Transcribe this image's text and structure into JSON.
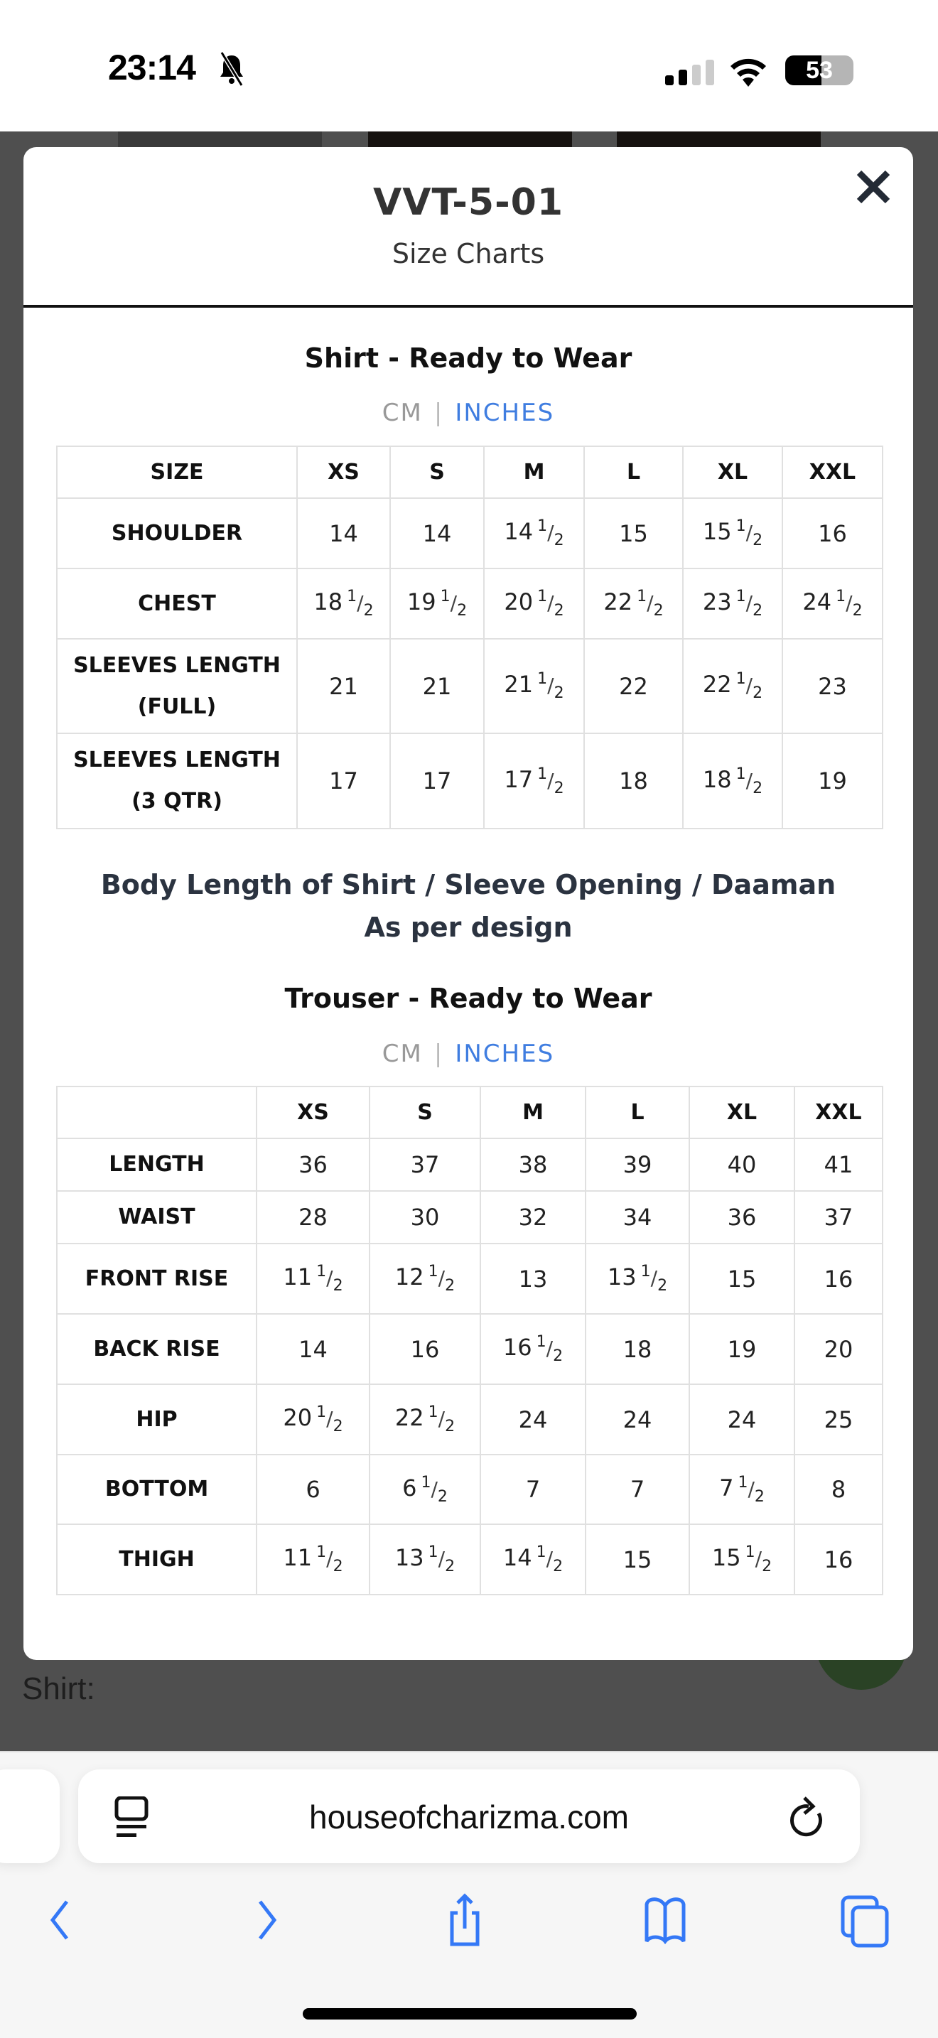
{
  "status_bar": {
    "time": "23:14",
    "battery": "53",
    "battery_level": 53
  },
  "modal": {
    "title": "VVT-5-01",
    "subtitle": "Size Charts",
    "shirt": {
      "heading": "Shirt - Ready to Wear",
      "unit_cm": "CM",
      "unit_sep": "|",
      "unit_inches": "INCHES",
      "active_unit": "INCHES",
      "headers": [
        "SIZE",
        "XS",
        "S",
        "M",
        "L",
        "XL",
        "XXL"
      ],
      "rows": [
        {
          "label": "SHOULDER",
          "values": [
            "14",
            "14",
            "14 1/2",
            "15",
            "15 1/2",
            "16"
          ]
        },
        {
          "label": "CHEST",
          "values": [
            "18 1/2",
            "19 1/2",
            "20 1/2",
            "22 1/2",
            "23 1/2",
            "24 1/2"
          ]
        },
        {
          "label": "SLEEVES LENGTH (FULL)",
          "values": [
            "21",
            "21",
            "21 1/2",
            "22",
            "22 1/2",
            "23"
          ]
        },
        {
          "label": "SLEEVES LENGTH (3 QTR)",
          "values": [
            "17",
            "17",
            "17 1/2",
            "18",
            "18 1/2",
            "19"
          ]
        }
      ]
    },
    "note_line1": "Body Length of Shirt / Sleeve Opening / Daaman",
    "note_line2": "As per design",
    "trouser": {
      "heading": "Trouser - Ready to Wear",
      "unit_cm": "CM",
      "unit_sep": "|",
      "unit_inches": "INCHES",
      "active_unit": "INCHES",
      "headers": [
        "",
        "XS",
        "S",
        "M",
        "L",
        "XL",
        "XXL"
      ],
      "rows": [
        {
          "label": "LENGTH",
          "values": [
            "36",
            "37",
            "38",
            "39",
            "40",
            "41"
          ]
        },
        {
          "label": "WAIST",
          "values": [
            "28",
            "30",
            "32",
            "34",
            "36",
            "37"
          ]
        },
        {
          "label": "FRONT RISE",
          "values": [
            "11 1/2",
            "12 1/2",
            "13",
            "13 1/2",
            "15",
            "16"
          ]
        },
        {
          "label": "BACK RISE",
          "values": [
            "14",
            "16",
            "16 1/2",
            "18",
            "19",
            "20"
          ]
        },
        {
          "label": "HIP",
          "values": [
            "20 1/2",
            "22 1/2",
            "24",
            "24",
            "24",
            "25"
          ]
        },
        {
          "label": "BOTTOM",
          "values": [
            "6",
            "6 1/2",
            "7",
            "7",
            "7 1/2",
            "8"
          ]
        },
        {
          "label": "THIGH",
          "values": [
            "11 1/2",
            "13 1/2",
            "14 1/2",
            "15",
            "15 1/2",
            "16"
          ]
        }
      ]
    }
  },
  "background": {
    "label": "Shirt:"
  },
  "browser": {
    "url": "houseofcharizma.com",
    "accent": "#3478f6"
  }
}
